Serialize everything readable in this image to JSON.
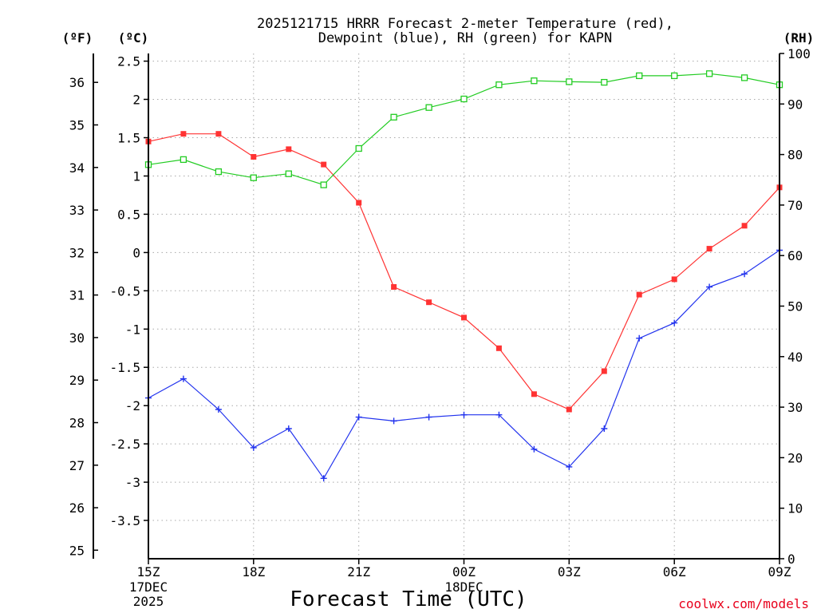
{
  "chart_data": {
    "type": "line",
    "title_lines": [
      "2025121715 HRRR Forecast 2-meter Temperature (red),",
      "Dewpoint (blue), RH (green) for KAPN"
    ],
    "xlabel": "Forecast Time (UTC)",
    "credit": "coolwx.com/models",
    "x_hours": [
      0,
      1,
      2,
      3,
      4,
      5,
      6,
      7,
      8,
      9,
      10,
      11,
      12,
      13,
      14,
      15,
      16,
      17,
      18
    ],
    "x_range": [
      0,
      18
    ],
    "x_ticks": [
      {
        "hour": 0,
        "label": "15Z",
        "sub": [
          "17DEC",
          "2025"
        ]
      },
      {
        "hour": 3,
        "label": "18Z",
        "sub": []
      },
      {
        "hour": 6,
        "label": "21Z",
        "sub": []
      },
      {
        "hour": 9,
        "label": "00Z",
        "sub": [
          "18DEC"
        ]
      },
      {
        "hour": 12,
        "label": "03Z",
        "sub": []
      },
      {
        "hour": 15,
        "label": "06Z",
        "sub": []
      },
      {
        "hour": 18,
        "label": "09Z",
        "sub": []
      }
    ],
    "axes": {
      "celsius": {
        "unit_label": "(ºC)",
        "range": [
          -4.0,
          2.6
        ],
        "ticks": [
          2.5,
          2,
          1.5,
          1,
          0.5,
          0,
          -0.5,
          -1,
          -1.5,
          -2,
          -2.5,
          -3,
          -3.5
        ],
        "tick_labels": [
          "2.5",
          "2",
          "1.5",
          "1",
          "0.5",
          "0",
          "-0.5",
          "-1",
          "-1.5",
          "-2",
          "-2.5",
          "-3",
          "-3.5"
        ]
      },
      "fahrenheit": {
        "unit_label": "(ºF)",
        "ticks": [
          36,
          35,
          34,
          33,
          32,
          31,
          30,
          29,
          28,
          27,
          26,
          25
        ],
        "tick_labels": [
          "36",
          "35",
          "34",
          "33",
          "32",
          "31",
          "30",
          "29",
          "28",
          "27",
          "26",
          "25"
        ]
      },
      "rh": {
        "unit_label": "(RH)",
        "range": [
          0,
          100
        ],
        "ticks": [
          100,
          90,
          80,
          70,
          60,
          50,
          40,
          30,
          20,
          10,
          0
        ],
        "tick_labels": [
          "100",
          "90",
          "80",
          "70",
          "60",
          "50",
          "40",
          "30",
          "20",
          "10",
          "0"
        ]
      }
    },
    "series": [
      {
        "name": "2-meter Temperature",
        "axis": "celsius",
        "color": "#ff3333",
        "marker": "filled-square",
        "values": [
          1.45,
          1.55,
          1.55,
          1.25,
          1.35,
          1.15,
          0.65,
          -0.45,
          -0.65,
          -0.85,
          -1.25,
          -1.85,
          -2.05,
          -1.55,
          -0.55,
          -0.35,
          0.05,
          0.35,
          0.85
        ]
      },
      {
        "name": "Dewpoint",
        "axis": "celsius",
        "color": "#2233ee",
        "marker": "plus",
        "values": [
          -1.9,
          -1.65,
          -2.05,
          -2.55,
          -2.3,
          -2.95,
          -2.15,
          -2.2,
          -2.15,
          -2.12,
          -2.12,
          -2.57,
          -2.8,
          -2.3,
          -1.12,
          -0.92,
          -0.45,
          -0.28,
          0.03
        ]
      },
      {
        "name": "RH",
        "axis": "rh",
        "color": "#22cc22",
        "marker": "open-square",
        "values": [
          78,
          79,
          76.6,
          75.4,
          76.2,
          74,
          81.2,
          87.4,
          89.3,
          91,
          93.8,
          94.6,
          94.4,
          94.3,
          95.6,
          95.6,
          96,
          95.2,
          93.8
        ]
      }
    ]
  }
}
